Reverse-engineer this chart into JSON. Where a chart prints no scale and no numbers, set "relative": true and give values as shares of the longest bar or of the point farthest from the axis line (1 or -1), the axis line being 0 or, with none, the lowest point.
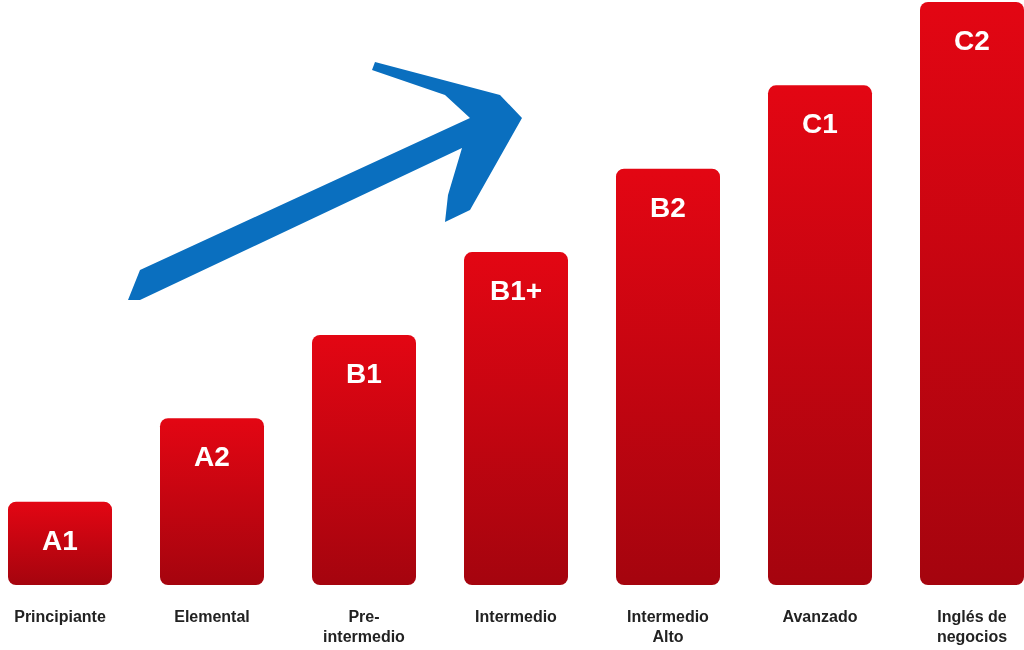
{
  "chart_data": {
    "type": "bar",
    "relative": true,
    "categories": [
      "Principiante",
      "Elemental",
      "Pre-intermedio",
      "Intermedio",
      "Intermedio Alto",
      "Avanzado",
      "Inglés de negocios"
    ],
    "values": [
      0.143,
      0.286,
      0.429,
      0.571,
      0.714,
      0.857,
      1
    ],
    "annotations": [
      {
        "text": "A1",
        "x": "Principiante",
        "y": 0.143
      },
      {
        "text": "A2",
        "x": "Elemental",
        "y": 0.286
      },
      {
        "text": "B1",
        "x": "Pre-intermedio",
        "y": 0.429
      },
      {
        "text": "B1+",
        "x": "Intermedio",
        "y": 0.571
      },
      {
        "text": "B2",
        "x": "Intermedio Alto",
        "y": 0.714
      },
      {
        "text": "C1",
        "x": "Avanzado",
        "y": 0.857
      },
      {
        "text": "C2",
        "x": "Inglés de negocios",
        "y": 1
      }
    ],
    "color": "#e30613"
  }
}
